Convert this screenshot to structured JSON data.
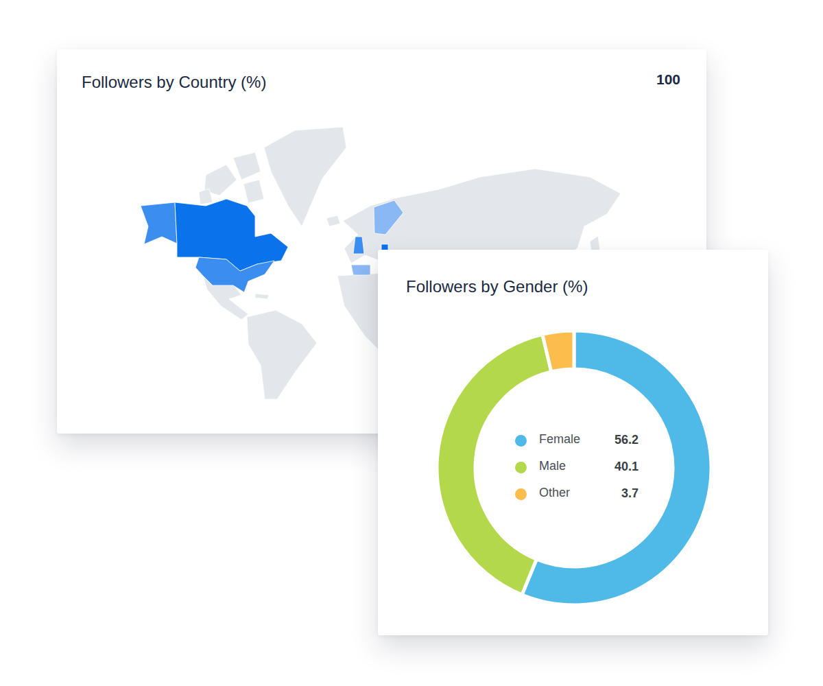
{
  "chart_data": [
    {
      "type": "choropleth",
      "title": "Followers by Country (%)",
      "total": 100
    },
    {
      "type": "pie",
      "title": "Followers by Gender (%)",
      "categories": [
        "Female",
        "Male",
        "Other"
      ],
      "values": [
        56.2,
        40.1,
        3.7
      ],
      "colors": [
        "#4fb9e8",
        "#b3d84b",
        "#fbbd4c"
      ]
    }
  ]
}
